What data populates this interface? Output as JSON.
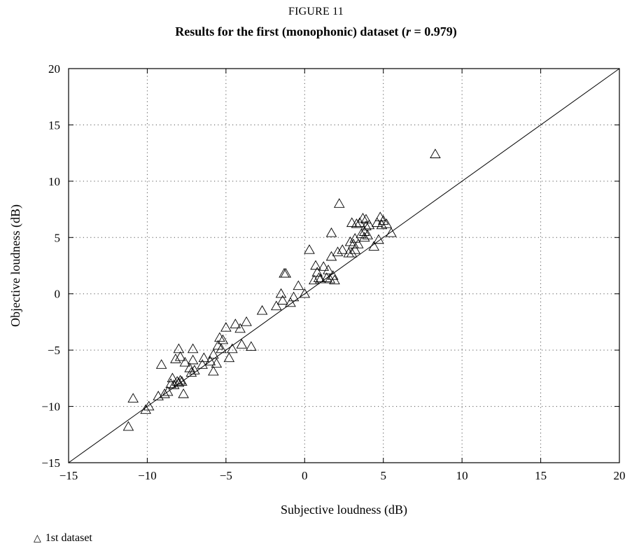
{
  "figure": {
    "label": "FIGURE 11",
    "title_before": "Results for the first (monophonic) dataset (",
    "title_var": "r",
    "title_after": " = 0.979)"
  },
  "chart_data": {
    "type": "scatter",
    "title": "Results for the first (monophonic) dataset (r = 0.979)",
    "xlabel": "Subjective loudness (dB)",
    "ylabel": "Objective loudness (dB)",
    "xlim": [
      -15,
      20
    ],
    "ylim": [
      -15,
      20
    ],
    "xticks": [
      -15,
      -10,
      -5,
      0,
      5,
      10,
      15,
      20
    ],
    "yticks": [
      -15,
      -10,
      -5,
      0,
      5,
      10,
      15,
      20
    ],
    "xtick_labels": [
      "−15",
      "−10",
      "−5",
      "0",
      "5",
      "10",
      "15",
      "20"
    ],
    "ytick_labels": [
      "−15",
      "−10",
      "−5",
      "0",
      "5",
      "10",
      "15",
      "20"
    ],
    "grid": true,
    "grid_style": "dotted",
    "reference_line": {
      "x": [
        -15,
        20
      ],
      "y": [
        -15,
        20
      ]
    },
    "legend_position": "bottom-left, below plot",
    "series": [
      {
        "name": "1st dataset",
        "marker": "triangle-open",
        "x": [
          -11.2,
          -10.9,
          -10.1,
          -9.9,
          -9.3,
          -9.1,
          -8.9,
          -8.7,
          -8.5,
          -8.4,
          -8.3,
          -8.2,
          -8.1,
          -8.0,
          -8.0,
          -7.9,
          -7.9,
          -7.8,
          -7.7,
          -7.6,
          -7.3,
          -7.2,
          -7.1,
          -7.1,
          -7.0,
          -6.5,
          -6.4,
          -6.0,
          -5.8,
          -5.8,
          -5.6,
          -5.5,
          -5.4,
          -5.3,
          -5.2,
          -5.0,
          -4.8,
          -4.6,
          -4.4,
          -4.1,
          -4.0,
          -3.7,
          -3.4,
          -2.7,
          -1.8,
          -1.5,
          -1.4,
          -1.3,
          -1.2,
          -0.9,
          -0.7,
          -0.4,
          0.0,
          0.3,
          0.6,
          0.7,
          0.8,
          0.9,
          1.0,
          1.2,
          1.4,
          1.5,
          1.6,
          1.7,
          1.7,
          1.8,
          1.9,
          2.1,
          2.2,
          2.4,
          2.8,
          2.9,
          3.0,
          3.0,
          3.1,
          3.2,
          3.2,
          3.3,
          3.4,
          3.5,
          3.6,
          3.7,
          3.8,
          3.8,
          3.9,
          3.9,
          4.0,
          4.1,
          4.4,
          4.6,
          4.7,
          4.8,
          4.9,
          5.0,
          5.2,
          5.5,
          8.3
        ],
        "y": [
          -11.8,
          -9.3,
          -10.3,
          -10.0,
          -9.1,
          -6.3,
          -8.9,
          -8.7,
          -8.0,
          -7.5,
          -8.1,
          -5.8,
          -7.8,
          -7.9,
          -4.9,
          -7.7,
          -5.6,
          -7.8,
          -8.9,
          -6.1,
          -6.6,
          -7.0,
          -5.9,
          -4.9,
          -6.8,
          -6.3,
          -5.7,
          -6.0,
          -5.4,
          -6.9,
          -6.2,
          -4.6,
          -3.9,
          -4.9,
          -4.1,
          -3.0,
          -5.7,
          -4.9,
          -2.7,
          -3.1,
          -4.5,
          -2.5,
          -4.7,
          -1.5,
          -1.1,
          0.0,
          -0.6,
          1.8,
          1.8,
          -0.8,
          -0.3,
          0.7,
          0.0,
          3.9,
          1.2,
          2.5,
          1.9,
          1.4,
          1.3,
          2.4,
          1.4,
          2.1,
          1.3,
          3.3,
          5.4,
          1.6,
          1.2,
          3.7,
          8.0,
          3.9,
          3.6,
          4.6,
          3.6,
          6.3,
          4.4,
          4.9,
          3.9,
          6.2,
          4.4,
          6.3,
          5.3,
          6.7,
          5.0,
          5.5,
          6.0,
          6.6,
          5.2,
          6.1,
          4.2,
          6.3,
          4.8,
          6.8,
          6.1,
          6.5,
          6.2,
          5.4,
          12.4
        ]
      }
    ]
  },
  "legend": {
    "items": [
      {
        "symbol": "△",
        "label": "1st dataset"
      }
    ]
  }
}
